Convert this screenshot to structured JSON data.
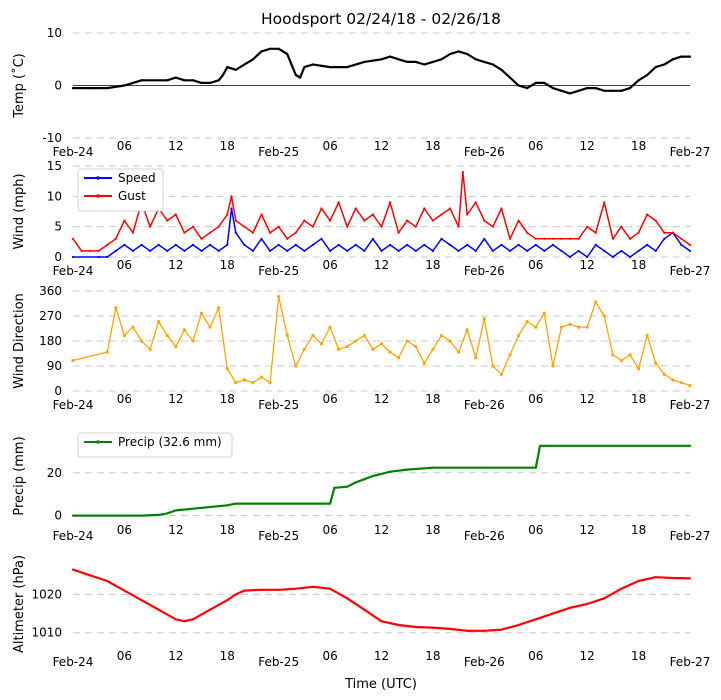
{
  "title": "Hoodsport 02/24/18 - 02/26/18",
  "xlabel": "Time (UTC)",
  "x_ticks": [
    {
      "hour": 0,
      "label": "Feb-24"
    },
    {
      "hour": 6,
      "label": "06"
    },
    {
      "hour": 12,
      "label": "12"
    },
    {
      "hour": 18,
      "label": "18"
    },
    {
      "hour": 24,
      "label": "Feb-25"
    },
    {
      "hour": 30,
      "label": "06"
    },
    {
      "hour": 36,
      "label": "12"
    },
    {
      "hour": 42,
      "label": "18"
    },
    {
      "hour": 48,
      "label": "Feb-26"
    },
    {
      "hour": 54,
      "label": "06"
    },
    {
      "hour": 60,
      "label": "12"
    },
    {
      "hour": 66,
      "label": "18"
    },
    {
      "hour": 72,
      "label": "Feb-27"
    }
  ],
  "colors": {
    "temp": "#000000",
    "speed": "#0000ff",
    "gust": "#ff0000",
    "direction": "#ffa500",
    "precip": "#008000",
    "altimeter": "#ff0000",
    "grid": "#c8c8c8"
  },
  "chart_data": [
    {
      "type": "line",
      "ylabel": "Temp ($^\\circ$C)",
      "ylabel_display": "Temp (˚C)",
      "ylim": [
        -10,
        10
      ],
      "yticks": [
        -10,
        0,
        10
      ],
      "zero_line": true,
      "series": [
        {
          "name": "Temp",
          "key": "temp",
          "x": [
            0,
            2,
            4,
            6,
            7,
            8,
            11,
            12,
            13,
            14,
            15,
            16,
            17,
            17.5,
            18,
            19,
            20,
            21,
            22,
            23,
            24,
            25,
            25.5,
            26,
            26.5,
            27,
            28,
            30,
            32,
            34,
            36,
            37,
            38,
            39,
            40,
            41,
            42,
            43,
            44,
            45,
            46,
            47,
            48,
            49,
            50,
            51,
            52,
            53,
            54,
            55,
            56,
            57,
            58,
            59,
            60,
            61,
            62,
            63,
            64,
            65,
            66,
            67,
            68,
            69,
            70,
            71,
            72
          ],
          "values": [
            -0.5,
            -0.5,
            -0.5,
            0,
            0.5,
            1,
            1,
            1.5,
            1,
            1,
            0.5,
            0.5,
            1,
            2,
            3.5,
            3,
            4,
            5,
            6.5,
            7,
            7,
            6,
            4,
            2,
            1.5,
            3.5,
            4,
            3.5,
            3.5,
            4.5,
            5,
            5.5,
            5,
            4.5,
            4.5,
            4,
            4.5,
            5,
            6,
            6.5,
            6,
            5,
            4.5,
            4,
            3,
            1.5,
            0,
            -0.5,
            0.5,
            0.5,
            -0.5,
            -1,
            -1.5,
            -1,
            -0.5,
            -0.5,
            -1,
            -1,
            -1,
            -0.5,
            1,
            2,
            3.5,
            4,
            5,
            5.5,
            5.5
          ]
        }
      ]
    },
    {
      "type": "line",
      "ylabel": "Wind (mph)",
      "ylim": [
        0,
        15
      ],
      "yticks": [
        0,
        5,
        10,
        15
      ],
      "legend": {
        "position": "top-left",
        "entries": [
          "Speed",
          "Gust"
        ]
      },
      "series": [
        {
          "name": "Speed",
          "key": "speed",
          "x": [
            0,
            3,
            4,
            5,
            6,
            7,
            8,
            9,
            10,
            11,
            12,
            13,
            14,
            15,
            16,
            17,
            18,
            18.5,
            19,
            20,
            21,
            22,
            23,
            24,
            25,
            26,
            27,
            28,
            29,
            30,
            31,
            32,
            33,
            34,
            35,
            36,
            37,
            38,
            39,
            40,
            41,
            42,
            43,
            44,
            45,
            46,
            47,
            48,
            49,
            50,
            51,
            52,
            53,
            54,
            55,
            56,
            57,
            58,
            59,
            60,
            61,
            62,
            63,
            64,
            65,
            66,
            67,
            68,
            69,
            70,
            71,
            72
          ],
          "values": [
            0,
            0,
            0,
            1,
            2,
            1,
            2,
            1,
            2,
            1,
            2,
            1,
            2,
            1,
            2,
            1,
            2,
            8,
            4,
            2,
            1,
            3,
            1,
            2,
            1,
            2,
            1,
            2,
            3,
            1,
            2,
            1,
            2,
            1,
            3,
            1,
            2,
            1,
            2,
            1,
            2,
            1,
            3,
            2,
            1,
            2,
            1,
            3,
            1,
            2,
            1,
            2,
            1,
            2,
            1,
            2,
            1,
            0,
            1,
            0,
            2,
            1,
            0,
            1,
            0,
            1,
            2,
            1,
            3,
            4,
            2,
            1
          ]
        },
        {
          "name": "Gust",
          "key": "gust",
          "x": [
            0,
            1,
            2,
            3,
            4,
            5,
            6,
            7,
            8,
            9,
            10,
            11,
            12,
            13,
            14,
            15,
            16,
            17,
            18,
            18.5,
            19,
            20,
            21,
            22,
            23,
            24,
            25,
            26,
            27,
            28,
            29,
            30,
            31,
            32,
            33,
            34,
            35,
            36,
            37,
            38,
            39,
            40,
            41,
            42,
            43,
            44,
            45,
            45.5,
            46,
            47,
            48,
            49,
            50,
            51,
            52,
            53,
            54,
            55,
            56,
            57,
            58,
            59,
            60,
            61,
            62,
            63,
            64,
            65,
            66,
            67,
            68,
            69,
            70,
            71,
            72
          ],
          "values": [
            3,
            1,
            1,
            1,
            2,
            3,
            6,
            4,
            9,
            5,
            8,
            6,
            7,
            4,
            5,
            3,
            4,
            5,
            7,
            10,
            6,
            5,
            4,
            7,
            4,
            5,
            3,
            4,
            6,
            5,
            8,
            6,
            9,
            5,
            8,
            6,
            7,
            5,
            9,
            4,
            6,
            5,
            8,
            6,
            7,
            8,
            5,
            14,
            7,
            9,
            6,
            5,
            8,
            3,
            6,
            4,
            3,
            3,
            3,
            3,
            3,
            3,
            5,
            4,
            9,
            3,
            5,
            3,
            4,
            7,
            6,
            4,
            4,
            3,
            2
          ]
        }
      ]
    },
    {
      "type": "scatter",
      "ylabel": "Wind Direction",
      "ylim": [
        0,
        360
      ],
      "yticks": [
        0,
        90,
        180,
        270,
        360
      ],
      "series": [
        {
          "name": "Direction",
          "key": "direction",
          "x": [
            0,
            4,
            5,
            6,
            7,
            8,
            9,
            10,
            11,
            12,
            13,
            14,
            15,
            16,
            17,
            18,
            19,
            20,
            21,
            22,
            23,
            24,
            25,
            26,
            27,
            28,
            29,
            30,
            31,
            32,
            33,
            34,
            35,
            36,
            37,
            38,
            39,
            40,
            41,
            42,
            43,
            44,
            45,
            46,
            47,
            48,
            49,
            50,
            51,
            52,
            53,
            54,
            55,
            56,
            57,
            58,
            59,
            60,
            61,
            62,
            63,
            64,
            65,
            66,
            67,
            68,
            69,
            70,
            71,
            72
          ],
          "values": [
            110,
            140,
            300,
            200,
            230,
            180,
            150,
            250,
            200,
            160,
            220,
            180,
            280,
            230,
            300,
            80,
            30,
            40,
            30,
            50,
            30,
            340,
            200,
            90,
            150,
            200,
            170,
            230,
            150,
            160,
            180,
            200,
            150,
            170,
            140,
            120,
            180,
            160,
            100,
            150,
            200,
            180,
            140,
            220,
            120,
            260,
            90,
            60,
            130,
            200,
            250,
            230,
            280,
            90,
            230,
            240,
            230,
            230,
            320,
            270,
            130,
            110,
            130,
            80,
            200,
            100,
            60,
            40,
            30,
            20
          ]
        }
      ]
    },
    {
      "type": "line",
      "ylabel": "Precip (mm)",
      "ylim": [
        -3,
        40
      ],
      "yticks": [
        0,
        20
      ],
      "legend": {
        "position": "top-left",
        "entries": [
          "Precip (32.6 mm)"
        ]
      },
      "series": [
        {
          "name": "Precip (32.6 mm)",
          "key": "precip",
          "x": [
            0,
            8,
            10,
            11,
            12,
            18,
            19,
            30,
            30.5,
            32,
            33,
            34,
            35,
            36,
            37,
            38,
            39,
            42,
            48,
            54,
            54.5,
            55,
            72
          ],
          "values": [
            0,
            0,
            0.3,
            1,
            2.4,
            4.8,
            5.6,
            5.6,
            13,
            13.5,
            15.5,
            17,
            18.5,
            19.5,
            20.5,
            21,
            21.5,
            22.4,
            22.4,
            22.4,
            32.6,
            32.6,
            32.6
          ]
        }
      ]
    },
    {
      "type": "line",
      "ylabel": "Altimeter (hPa)",
      "ylim": [
        1006,
        1029
      ],
      "yticks": [
        1010,
        1020
      ],
      "series": [
        {
          "name": "Altimeter",
          "key": "altimeter",
          "x": [
            0,
            2,
            4,
            6,
            8,
            10,
            12,
            13,
            14,
            16,
            18,
            19,
            20,
            22,
            24,
            26,
            28,
            30,
            32,
            34,
            36,
            38,
            40,
            42,
            44,
            46,
            48,
            50,
            52,
            54,
            56,
            58,
            60,
            62,
            64,
            66,
            68,
            70,
            72
          ],
          "values": [
            1026.5,
            1025,
            1023.5,
            1021,
            1018.5,
            1016,
            1013.5,
            1013,
            1013.5,
            1016,
            1018.5,
            1020,
            1021,
            1021.2,
            1021.2,
            1021.5,
            1022,
            1021.5,
            1019,
            1016,
            1013,
            1012,
            1011.5,
            1011.3,
            1011,
            1010.5,
            1010.5,
            1010.8,
            1012,
            1013.5,
            1015,
            1016.5,
            1017.5,
            1019,
            1021.5,
            1023.5,
            1024.5,
            1024.3,
            1024.2
          ]
        }
      ]
    }
  ]
}
